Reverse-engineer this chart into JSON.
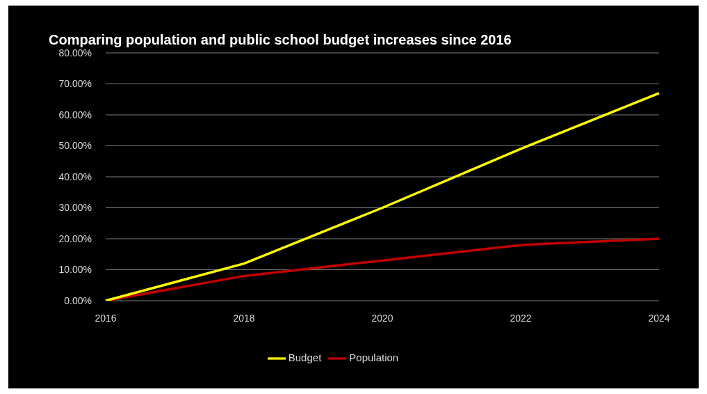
{
  "chart_data": {
    "type": "line",
    "title": "Comparing population and public school budget increases since 2016",
    "categories": [
      "2016",
      "2018",
      "2020",
      "2022",
      "2024"
    ],
    "series": [
      {
        "name": "Population",
        "color": "#c00000",
        "values": [
          0,
          8,
          13,
          18,
          20
        ]
      },
      {
        "name": "Budget",
        "color": "#ffff00",
        "values": [
          0,
          12,
          30,
          49,
          67
        ]
      }
    ],
    "ylim": [
      0,
      80
    ],
    "yticks": [
      {
        "value": 0,
        "label": "0.00%"
      },
      {
        "value": 10,
        "label": "10.00%"
      },
      {
        "value": 20,
        "label": "20.00%"
      },
      {
        "value": 30,
        "label": "30.00%"
      },
      {
        "value": 40,
        "label": "40.00%"
      },
      {
        "value": 50,
        "label": "50.00%"
      },
      {
        "value": 60,
        "label": "60.00%"
      },
      {
        "value": 70,
        "label": "70.00%"
      },
      {
        "value": 80,
        "label": "80.00%"
      }
    ],
    "grid": "y",
    "legend": "bottom",
    "marker": "none",
    "line_style": "solid"
  }
}
